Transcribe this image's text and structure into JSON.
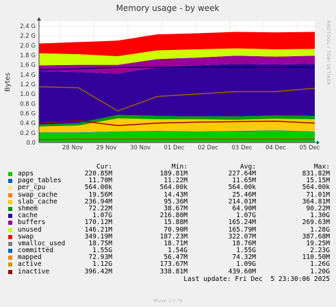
{
  "chart_data": {
    "type": "area",
    "title": "Memory usage - by week",
    "ylabel": "Bytes",
    "ylim": [
      0,
      2.5
    ],
    "y_unit": "G",
    "yticks": [
      "0.0",
      "0.2 G",
      "0.4 G",
      "0.6 G",
      "0.8 G",
      "1.0 G",
      "1.2 G",
      "1.4 G",
      "1.6 G",
      "1.8 G",
      "2.0 G",
      "2.2 G",
      "2.4 G"
    ],
    "xticks": [
      "28 Nov",
      "29 Nov",
      "30 Nov",
      "01 Dec",
      "02 Dec",
      "03 Dec",
      "04 Dec",
      "05 Dec"
    ],
    "grid": true,
    "x": [
      "28 Nov",
      "29 Nov",
      "30 Nov",
      "01 Dec",
      "02 Dec",
      "03 Dec",
      "04 Dec",
      "05 Dec"
    ],
    "series": [
      {
        "name": "apps",
        "color": "#00cc00",
        "values": [
          0.2,
          0.2,
          0.22,
          0.23,
          0.22,
          0.23,
          0.24,
          0.22
        ]
      },
      {
        "name": "page_tables",
        "color": "#0066b3",
        "values": [
          0.01,
          0.01,
          0.01,
          0.01,
          0.01,
          0.01,
          0.01,
          0.01
        ]
      },
      {
        "name": "per_cpu",
        "color": "#ff8000",
        "values": [
          0.0005,
          0.0005,
          0.0005,
          0.0005,
          0.0005,
          0.0005,
          0.0005,
          0.0005
        ]
      },
      {
        "name": "swap_cache",
        "color": "#ffcc00",
        "values": [
          0.02,
          0.02,
          0.02,
          0.02,
          0.02,
          0.02,
          0.02,
          0.02
        ]
      },
      {
        "name": "slab_cache",
        "color": "#ffcc00",
        "values": [
          0.1,
          0.12,
          0.25,
          0.22,
          0.23,
          0.21,
          0.22,
          0.23
        ]
      },
      {
        "name": "shmem",
        "color": "#009900",
        "values": [
          0.04,
          0.05,
          0.07,
          0.07,
          0.06,
          0.07,
          0.07,
          0.07
        ]
      },
      {
        "name": "cache",
        "color": "#330099",
        "values": [
          1.1,
          1.05,
          0.85,
          1.0,
          1.05,
          1.08,
          1.05,
          1.07
        ]
      },
      {
        "name": "buffers",
        "color": "#990099",
        "values": [
          0.12,
          0.15,
          0.18,
          0.17,
          0.16,
          0.17,
          0.16,
          0.17
        ]
      },
      {
        "name": "unused",
        "color": "#ccff00",
        "values": [
          0.25,
          0.22,
          0.18,
          0.18,
          0.17,
          0.15,
          0.15,
          0.14
        ]
      },
      {
        "name": "swap",
        "color": "#ff0000",
        "values": [
          0.2,
          0.25,
          0.32,
          0.33,
          0.33,
          0.34,
          0.35,
          0.35
        ]
      }
    ],
    "line_series": [
      {
        "name": "vmalloc_used",
        "color": "#808080",
        "values": [
          0.02,
          0.02,
          0.02,
          0.02,
          0.02,
          0.02,
          0.02,
          0.02
        ]
      },
      {
        "name": "committed",
        "color": "#000066",
        "values": [
          1.5,
          1.52,
          1.55,
          1.55,
          1.56,
          1.55,
          1.55,
          1.55
        ]
      },
      {
        "name": "mapped",
        "color": "#cc3300",
        "values": [
          0.06,
          0.07,
          0.07,
          0.07,
          0.07,
          0.07,
          0.07,
          0.07
        ]
      },
      {
        "name": "active",
        "color": "#996600",
        "values": [
          1.15,
          1.13,
          0.65,
          0.95,
          1.0,
          1.05,
          1.05,
          1.12
        ]
      },
      {
        "name": "inactive",
        "color": "#990000",
        "values": [
          0.4,
          0.45,
          0.35,
          0.4,
          0.42,
          0.43,
          0.44,
          0.4
        ]
      }
    ]
  },
  "legend": {
    "headers": [
      "Cur:",
      "Min:",
      "Avg:",
      "Max:"
    ],
    "rows": [
      {
        "name": "apps",
        "color": "#00cc00",
        "cur": "220.85M",
        "min": "189.81M",
        "avg": "227.64M",
        "max": "831.82M"
      },
      {
        "name": "page_tables",
        "color": "#0066b3",
        "cur": "11.70M",
        "min": "11.22M",
        "avg": "11.65M",
        "max": "15.15M"
      },
      {
        "name": "per_cpu",
        "color": "#ffe680",
        "cur": "564.00k",
        "min": "564.00k",
        "avg": "564.00k",
        "max": "564.00k"
      },
      {
        "name": "swap_cache",
        "color": "#ff8000",
        "cur": "19.56M",
        "min": "14.43M",
        "avg": "25.46M",
        "max": "71.01M"
      },
      {
        "name": "slab_cache",
        "color": "#ffcc00",
        "cur": "236.94M",
        "min": "95.36M",
        "avg": "214.01M",
        "max": "364.81M"
      },
      {
        "name": "shmem",
        "color": "#009900",
        "cur": "72.22M",
        "min": "38.67M",
        "avg": "64.90M",
        "max": "90.22M"
      },
      {
        "name": "cache",
        "color": "#330099",
        "cur": "1.07G",
        "min": "216.80M",
        "avg": "1.07G",
        "max": "1.30G"
      },
      {
        "name": "buffers",
        "color": "#990099",
        "cur": "170.12M",
        "min": "15.88M",
        "avg": "165.24M",
        "max": "269.63M"
      },
      {
        "name": "unused",
        "color": "#ccff00",
        "cur": "146.21M",
        "min": "70.90M",
        "avg": "165.79M",
        "max": "1.28G"
      },
      {
        "name": "swap",
        "color": "#ff0000",
        "cur": "349.19M",
        "min": "187.23M",
        "avg": "322.07M",
        "max": "387.68M"
      },
      {
        "name": "vmalloc_used",
        "color": "#808080",
        "cur": "18.75M",
        "min": "18.71M",
        "avg": "18.76M",
        "max": "19.25M"
      },
      {
        "name": "committed",
        "color": "#0066b3",
        "cur": "1.55G",
        "min": "1.54G",
        "avg": "1.55G",
        "max": "2.23G"
      },
      {
        "name": "mapped",
        "color": "#ff8000",
        "cur": "72.93M",
        "min": "56.47M",
        "avg": "74.32M",
        "max": "110.50M"
      },
      {
        "name": "active",
        "color": "#cc9900",
        "cur": "1.12G",
        "min": "173.67M",
        "avg": "1.09G",
        "max": "1.26G"
      },
      {
        "name": "inactive",
        "color": "#990000",
        "cur": "396.42M",
        "min": "338.81M",
        "avg": "439.60M",
        "max": "1.20G"
      }
    ],
    "last_update": "Last update: Fri Dec  5 23:30:06 2025"
  },
  "footer": {
    "munin": "Munin 2.0.76",
    "side_label": "RRDTOOL / TOBI OETIKER"
  }
}
